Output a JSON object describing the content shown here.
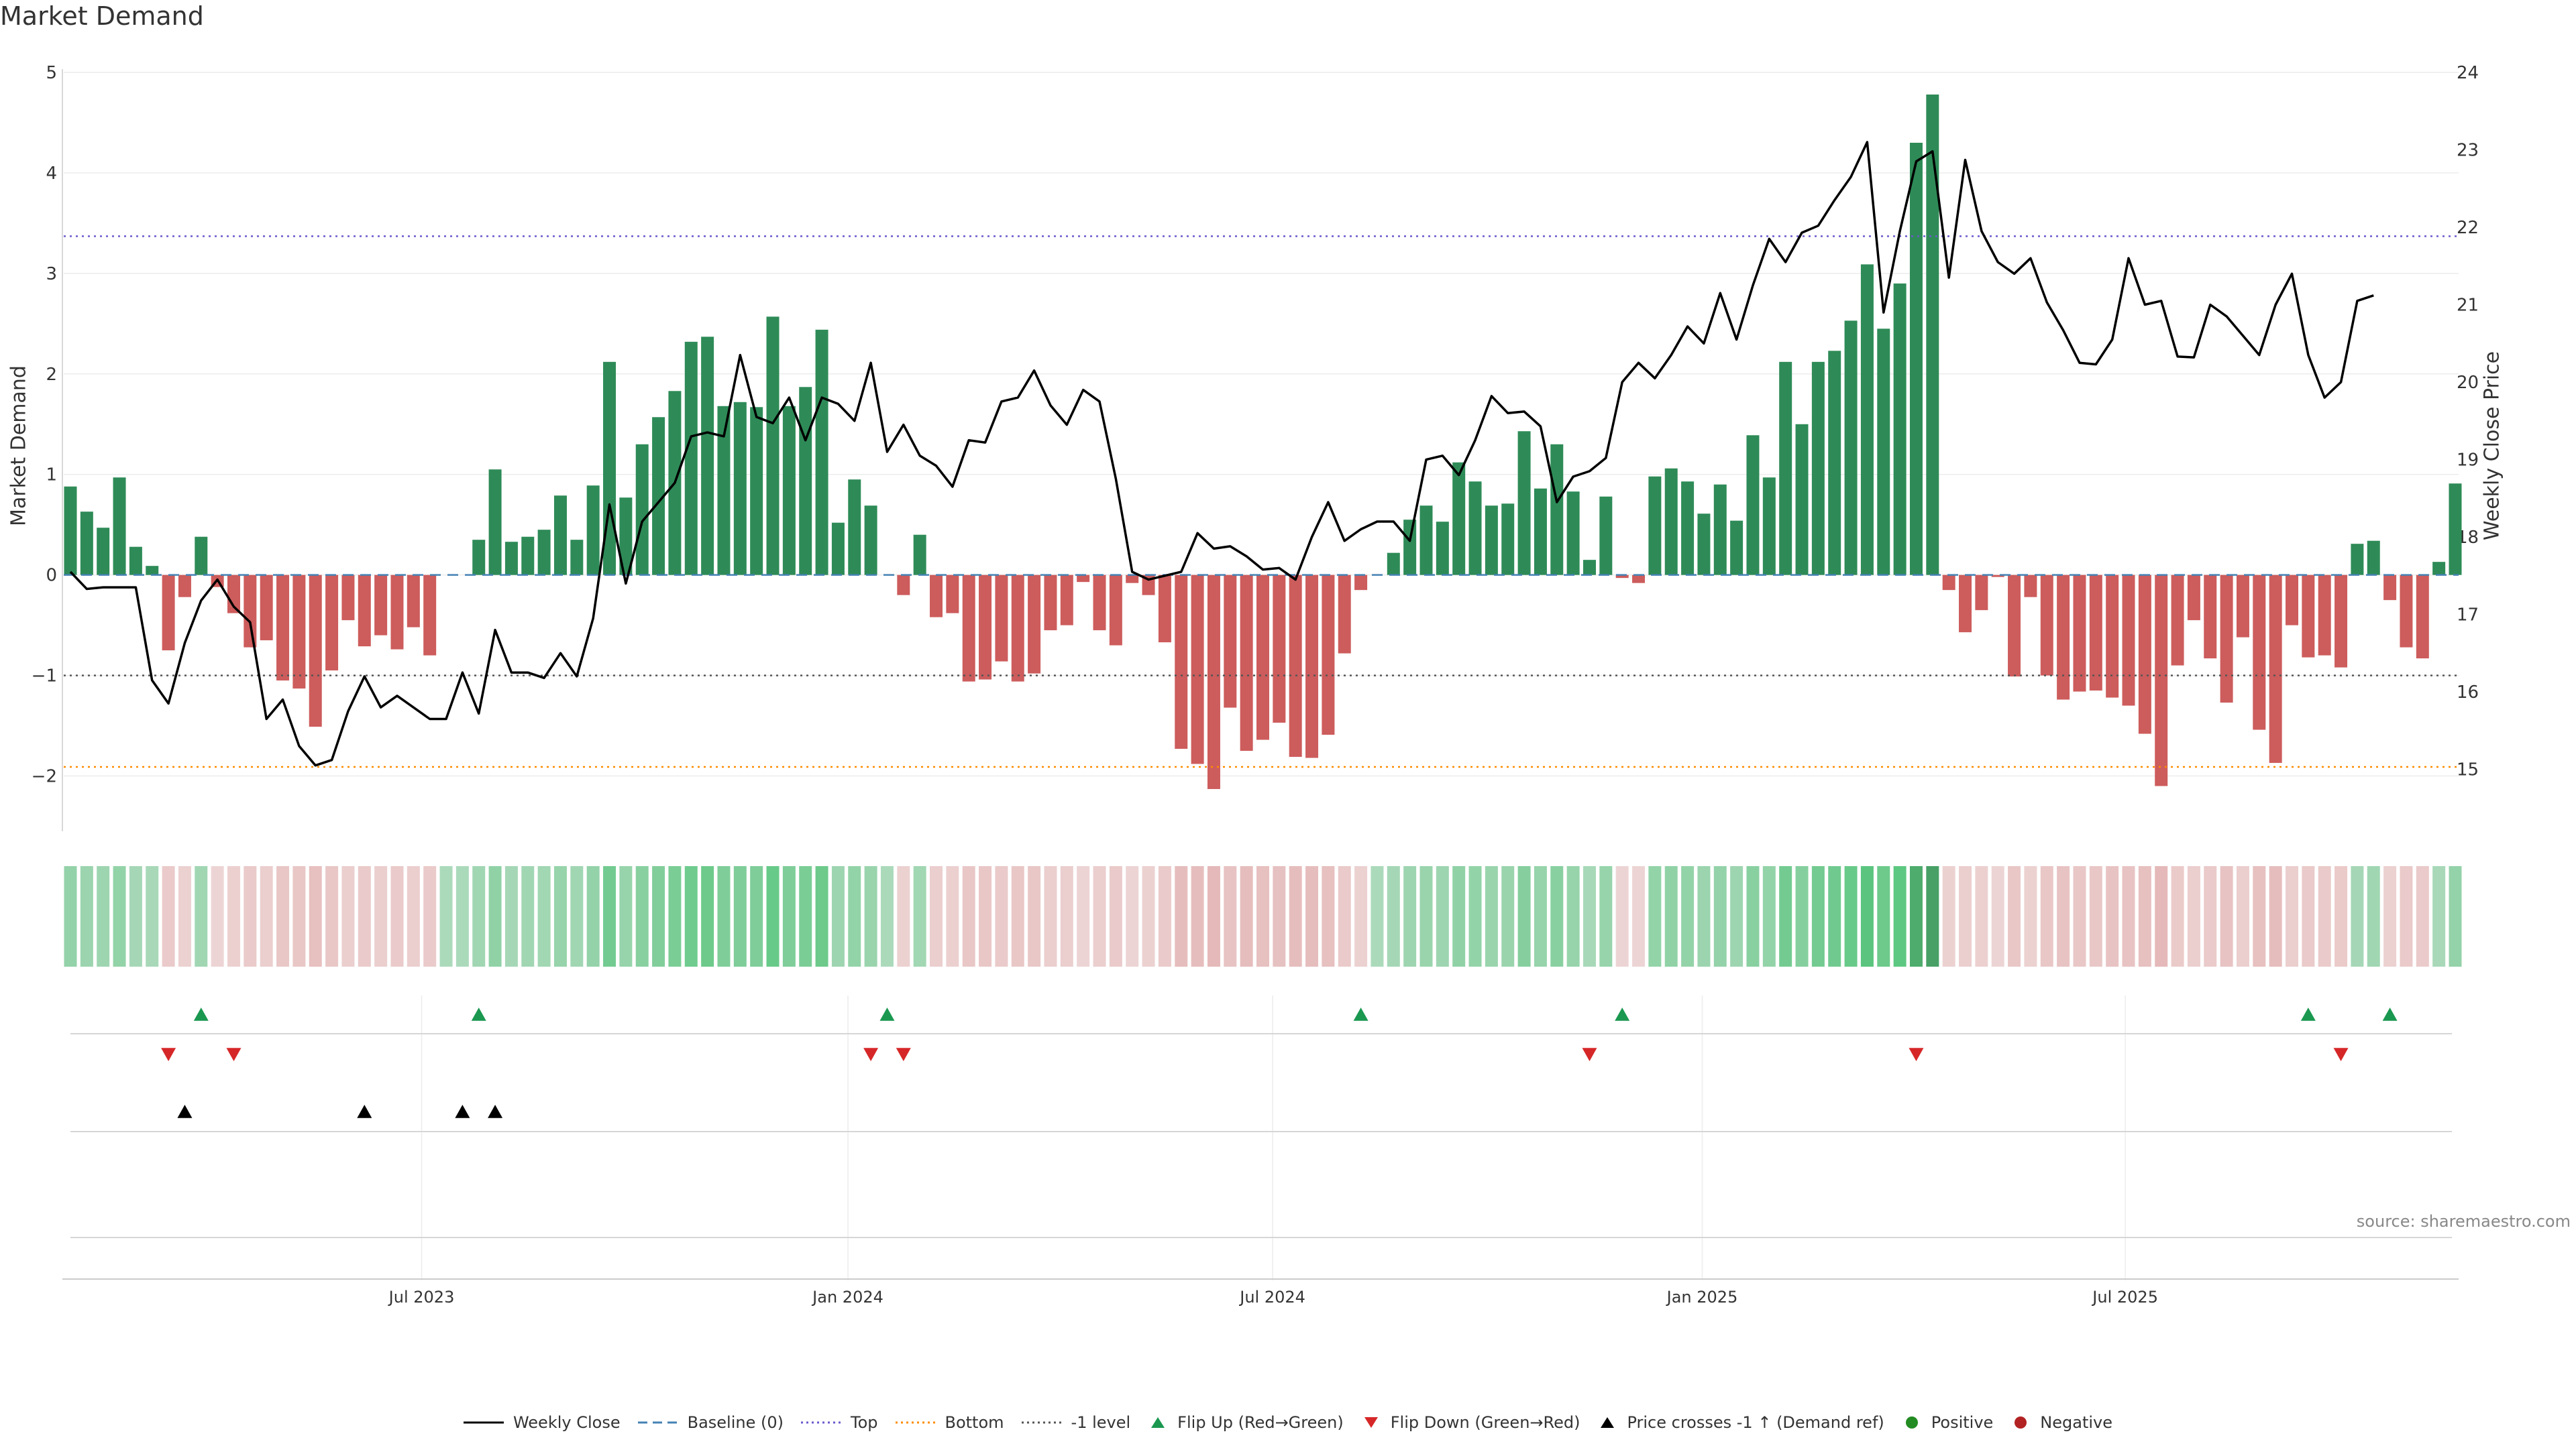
{
  "title": "Market Demand",
  "source": "source: sharemaestro.com",
  "chart_data": {
    "type": "bar+line",
    "title": "Market Demand",
    "ylabel_left": "Market Demand",
    "ylabel_right": "Weekly Close Price",
    "ylim_left": [
      -2.55,
      5.0
    ],
    "ylim_right": [
      14.2,
      24.0
    ],
    "yticks_left": [
      -2,
      -1,
      0,
      1,
      2,
      3,
      4,
      5
    ],
    "yticks_left_labels": [
      "−2",
      "−1",
      "0",
      "1",
      "2",
      "3",
      "4",
      "5"
    ],
    "yticks_right": [
      15,
      16,
      17,
      18,
      19,
      20,
      21,
      22,
      23,
      24
    ],
    "yticks_right_labels": [
      "15",
      "16",
      "17",
      "18",
      "19",
      "20",
      "21",
      "22",
      "23",
      "24"
    ],
    "x_tick_labels": [
      "Jul 2023",
      "Jan 2024",
      "Jul 2024",
      "Jan 2025",
      "Jul 2025"
    ],
    "x_tick_weeks": [
      21.5,
      47.6,
      73.6,
      99.9,
      125.8
    ],
    "reference_lines": {
      "baseline": 0,
      "top": 3.37,
      "bottom": -1.91,
      "minus_one": -1
    },
    "demand": [
      0.88,
      0.63,
      0.47,
      0.97,
      0.28,
      0.09,
      -0.75,
      -0.22,
      0.38,
      -0.12,
      -0.38,
      -0.72,
      -0.65,
      -1.05,
      -1.13,
      -1.51,
      -0.95,
      -0.45,
      -0.71,
      -0.6,
      -0.74,
      -0.52,
      -0.8,
      0.0,
      0.0,
      0.35,
      1.05,
      0.33,
      0.38,
      0.45,
      0.79,
      0.35,
      0.89,
      2.12,
      0.77,
      1.3,
      1.57,
      1.83,
      2.32,
      2.37,
      1.68,
      1.72,
      1.67,
      2.57,
      1.68,
      1.87,
      2.44,
      0.52,
      0.95,
      0.69,
      0.0,
      -0.2,
      0.4,
      -0.42,
      -0.38,
      -1.06,
      -1.04,
      -0.86,
      -1.06,
      -0.98,
      -0.55,
      -0.5,
      -0.07,
      -0.55,
      -0.7,
      -0.08,
      -0.2,
      -0.67,
      -1.73,
      -1.88,
      -2.13,
      -1.32,
      -1.75,
      -1.64,
      -1.47,
      -1.81,
      -1.82,
      -1.59,
      -0.78,
      -0.15,
      0.0,
      0.22,
      0.55,
      0.69,
      0.53,
      1.12,
      0.93,
      0.69,
      0.71,
      1.43,
      0.86,
      1.3,
      0.83,
      0.15,
      0.78,
      -0.03,
      -0.08,
      0.98,
      1.06,
      0.93,
      0.61,
      0.9,
      0.54,
      1.39,
      0.97,
      2.12,
      1.5,
      2.12,
      2.23,
      2.53,
      3.09,
      2.45,
      2.9,
      4.3,
      4.78,
      -0.15,
      -0.57,
      -0.35,
      -0.02,
      -1.01,
      -0.22,
      -1.0,
      -1.24,
      -1.16,
      -1.15,
      -1.22,
      -1.3,
      -1.58,
      -2.1,
      -0.9,
      -0.45,
      -0.83,
      -1.27,
      -0.62,
      -1.54,
      -1.87,
      -0.5,
      -0.82,
      -0.8,
      -0.92,
      0.31,
      0.34,
      -0.25,
      -0.72,
      -0.83,
      0.13,
      0.91
    ],
    "weekly_close": [
      17.55,
      17.33,
      17.35,
      17.35,
      17.35,
      16.15,
      15.85,
      16.63,
      17.18,
      17.45,
      17.1,
      16.9,
      15.65,
      15.9,
      15.3,
      15.05,
      15.12,
      15.75,
      16.2,
      15.8,
      15.95,
      15.8,
      15.65,
      15.65,
      16.25,
      15.72,
      16.8,
      16.25,
      16.25,
      16.18,
      16.5,
      16.2,
      16.95,
      18.42,
      17.4,
      18.2,
      18.45,
      18.7,
      19.3,
      19.35,
      19.3,
      20.35,
      19.55,
      19.47,
      19.8,
      19.25,
      19.8,
      19.72,
      19.5,
      20.25,
      19.1,
      19.45,
      19.05,
      18.92,
      18.65,
      19.25,
      19.22,
      19.75,
      19.8,
      20.15,
      19.7,
      19.45,
      19.9,
      19.75,
      18.75,
      17.55,
      17.45,
      17.5,
      17.55,
      18.05,
      17.85,
      17.88,
      17.75,
      17.58,
      17.6,
      17.45,
      18.0,
      18.45,
      17.95,
      18.1,
      18.2,
      18.2,
      17.95,
      19.0,
      19.05,
      18.8,
      19.25,
      19.82,
      19.6,
      19.62,
      19.43,
      18.45,
      18.78,
      18.85,
      19.02,
      20.0,
      20.25,
      20.05,
      20.35,
      20.72,
      20.5,
      21.15,
      20.55,
      21.25,
      21.85,
      21.55,
      21.93,
      22.02,
      22.35,
      22.65,
      23.1,
      20.9,
      21.95,
      22.85,
      22.98,
      21.35,
      22.87,
      21.95,
      21.55,
      21.4,
      21.6,
      21.03,
      20.67,
      20.25,
      20.23,
      20.55,
      21.6,
      21.0,
      21.05,
      20.33,
      20.32,
      21.0,
      20.85,
      20.6,
      20.35,
      21.0,
      21.4,
      20.35,
      19.8,
      20.0,
      21.05,
      21.12
    ],
    "strength_strip_note": "One cell per week, coloured green/red with intensity by demand magnitude",
    "flip_up_weeks": [
      8,
      25,
      50,
      79,
      95,
      137,
      142
    ],
    "flip_down_weeks": [
      6,
      10,
      49,
      51,
      93,
      113,
      139
    ],
    "price_cross_weeks": [
      7,
      18,
      24,
      26
    ],
    "legend": [
      "Weekly Close",
      "Baseline (0)",
      "Top",
      "Bottom",
      "-1 level",
      "Flip Up (Red→Green)",
      "Flip Down (Green→Red)",
      "Price crosses -1 ↑ (Demand ref)",
      "Positive",
      "Negative"
    ]
  },
  "colors": {
    "bar_positive": "#2e8b57",
    "bar_negative": "#cd5c5c",
    "price_line": "#000000",
    "baseline": "#4682b4",
    "top_line": "#6a5acd",
    "bottom_line": "#ff8c00",
    "minus_one_line": "#555555",
    "flip_up": "#1a9850",
    "flip_down": "#d62728",
    "price_cross": "#000000",
    "positive_dot": "#228b22",
    "negative_dot": "#b22222"
  }
}
